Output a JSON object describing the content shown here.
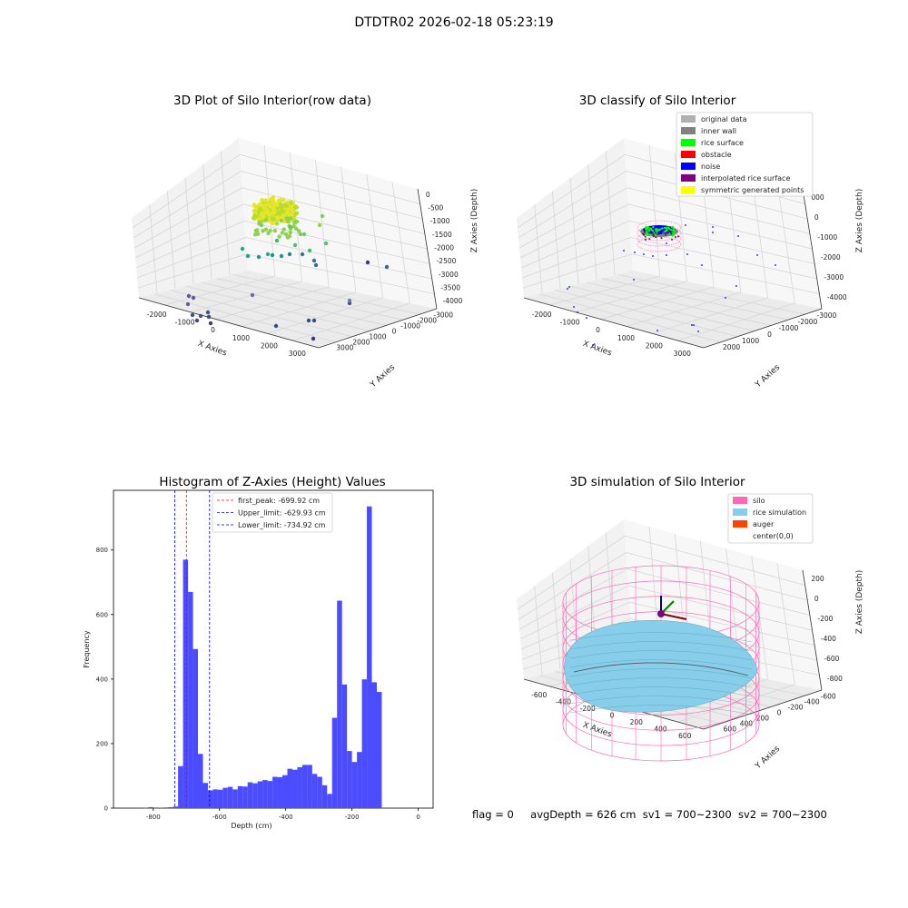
{
  "suptitle": "DTDTR02 2026-02-18 05:23:19",
  "footer": {
    "flag": "flag = 0",
    "avg_depth": "avgDepth = 626 cm",
    "sv1": "sv1 = 700~2300",
    "sv2": "sv2 = 700~2300"
  },
  "colors": {
    "original_data": "#b0b0b0",
    "inner_wall": "#808080",
    "rice_surface": "#00ff00",
    "obstacle": "#ff0000",
    "noise": "#0000ff",
    "interpolated_rice_surface": "#800080",
    "symmetric_generated_points": "#ffff00",
    "silo": "#ff69b4",
    "rice_simulation": "#87ceeb",
    "auger": "#ff4500",
    "histogram": "#4b4bff",
    "first_peak_line": "#ff0000",
    "limit_lines": "#0000cc"
  },
  "chart_data": [
    {
      "type": "scatter",
      "title": "3D Plot of Silo Interior(row data)",
      "xlabel": "X Axies",
      "ylabel": "Y Axies",
      "zlabel": "Z Axies (Depth)",
      "x_ticks": [
        "-2000",
        "-1000",
        "0",
        "1000",
        "2000",
        "3000"
      ],
      "y_ticks": [
        "-3000",
        "-2000",
        "-1000",
        "0",
        "1000",
        "2000",
        "3000"
      ],
      "z_ticks": [
        "0",
        "-500",
        "-1000",
        "-1500",
        "-2000",
        "-2500",
        "-3000",
        "-3500",
        "-4000"
      ],
      "grid": true
    },
    {
      "type": "scatter",
      "title": "3D classify of Silo Interior",
      "xlabel": "X Axies",
      "ylabel": "Y Axies",
      "zlabel": "Z Axies (Depth)",
      "x_ticks": [
        "-2000",
        "-1000",
        "0",
        "1000",
        "2000",
        "3000"
      ],
      "y_ticks": [
        "-3000",
        "-2000",
        "-1000",
        "0",
        "1000",
        "2000"
      ],
      "z_ticks": [
        "000",
        "0",
        "-1000",
        "-2000",
        "-3000",
        "-4000"
      ],
      "legend_position": "top-right",
      "legend": [
        {
          "label": "original data",
          "color_key": "original_data"
        },
        {
          "label": "inner wall",
          "color_key": "inner_wall"
        },
        {
          "label": "rice surface",
          "color_key": "rice_surface"
        },
        {
          "label": "obstacle",
          "color_key": "obstacle"
        },
        {
          "label": "noise",
          "color_key": "noise"
        },
        {
          "label": "interpolated rice surface",
          "color_key": "interpolated_rice_surface"
        },
        {
          "label": "symmetric generated points",
          "color_key": "symmetric_generated_points"
        }
      ],
      "grid": true
    },
    {
      "type": "bar",
      "title": "Histogram of Z-Axies (Height) Values",
      "xlabel": "Depth (cm)",
      "ylabel": "Frequency",
      "xlim": [
        -920,
        45
      ],
      "ylim": [
        0,
        985
      ],
      "x_ticks": [
        -800,
        -600,
        -400,
        -200,
        0
      ],
      "y_ticks": [
        0,
        200,
        400,
        600,
        800
      ],
      "bin_width": 15,
      "bins": [
        {
          "x0": -830,
          "value": 1
        },
        {
          "x0": -815,
          "value": 3
        },
        {
          "x0": -785,
          "value": 1
        },
        {
          "x0": -770,
          "value": 2
        },
        {
          "x0": -755,
          "value": 3
        },
        {
          "x0": -740,
          "value": 5
        },
        {
          "x0": -725,
          "value": 130
        },
        {
          "x0": -710,
          "value": 770
        },
        {
          "x0": -695,
          "value": 670
        },
        {
          "x0": -680,
          "value": 493
        },
        {
          "x0": -665,
          "value": 168
        },
        {
          "x0": -650,
          "value": 78
        },
        {
          "x0": -635,
          "value": 55
        },
        {
          "x0": -620,
          "value": 58
        },
        {
          "x0": -605,
          "value": 57
        },
        {
          "x0": -590,
          "value": 63
        },
        {
          "x0": -575,
          "value": 66
        },
        {
          "x0": -560,
          "value": 58
        },
        {
          "x0": -545,
          "value": 68
        },
        {
          "x0": -530,
          "value": 67
        },
        {
          "x0": -515,
          "value": 80
        },
        {
          "x0": -500,
          "value": 77
        },
        {
          "x0": -485,
          "value": 83
        },
        {
          "x0": -470,
          "value": 87
        },
        {
          "x0": -455,
          "value": 84
        },
        {
          "x0": -440,
          "value": 97
        },
        {
          "x0": -425,
          "value": 96
        },
        {
          "x0": -410,
          "value": 102
        },
        {
          "x0": -395,
          "value": 122
        },
        {
          "x0": -380,
          "value": 119
        },
        {
          "x0": -365,
          "value": 127
        },
        {
          "x0": -350,
          "value": 134
        },
        {
          "x0": -335,
          "value": 134
        },
        {
          "x0": -320,
          "value": 106
        },
        {
          "x0": -305,
          "value": 97
        },
        {
          "x0": -290,
          "value": 71
        },
        {
          "x0": -275,
          "value": 44
        },
        {
          "x0": -260,
          "value": 280
        },
        {
          "x0": -245,
          "value": 643
        },
        {
          "x0": -230,
          "value": 383
        },
        {
          "x0": -215,
          "value": 177
        },
        {
          "x0": -200,
          "value": 143
        },
        {
          "x0": -185,
          "value": 174
        },
        {
          "x0": -170,
          "value": 399
        },
        {
          "x0": -155,
          "value": 935
        },
        {
          "x0": -140,
          "value": 390
        },
        {
          "x0": -125,
          "value": 360
        }
      ],
      "vlines": [
        {
          "x": -699.92,
          "color_key": "first_peak_line",
          "label": "first_peak: -699.92 cm"
        },
        {
          "x": -629.93,
          "color_key": "limit_lines",
          "label": "Upper_limit: -629.93 cm"
        },
        {
          "x": -734.92,
          "color_key": "limit_lines",
          "label": "Lower_limit: -734.92 cm"
        }
      ],
      "legend_position": "top-center"
    },
    {
      "type": "surface",
      "title": "3D simulation of Silo Interior",
      "xlabel": "X Axies",
      "ylabel": "Y Axies",
      "zlabel": "Z Axies (Depth)",
      "x_ticks": [
        "-600",
        "-400",
        "-200",
        "0",
        "200",
        "400",
        "600"
      ],
      "y_ticks": [
        "-600",
        "-400",
        "-200",
        "0",
        "200",
        "400",
        "600"
      ],
      "z_ticks": [
        "200",
        "0",
        "-200",
        "-400",
        "-600",
        "-800"
      ],
      "legend_position": "top-right",
      "legend": [
        {
          "label": "silo",
          "color_key": "silo"
        },
        {
          "label": "rice simulation",
          "color_key": "rice_simulation"
        },
        {
          "label": "auger",
          "color_key": "auger"
        },
        {
          "label": "center(0,0)",
          "color_key": ""
        }
      ],
      "grid": true
    }
  ]
}
